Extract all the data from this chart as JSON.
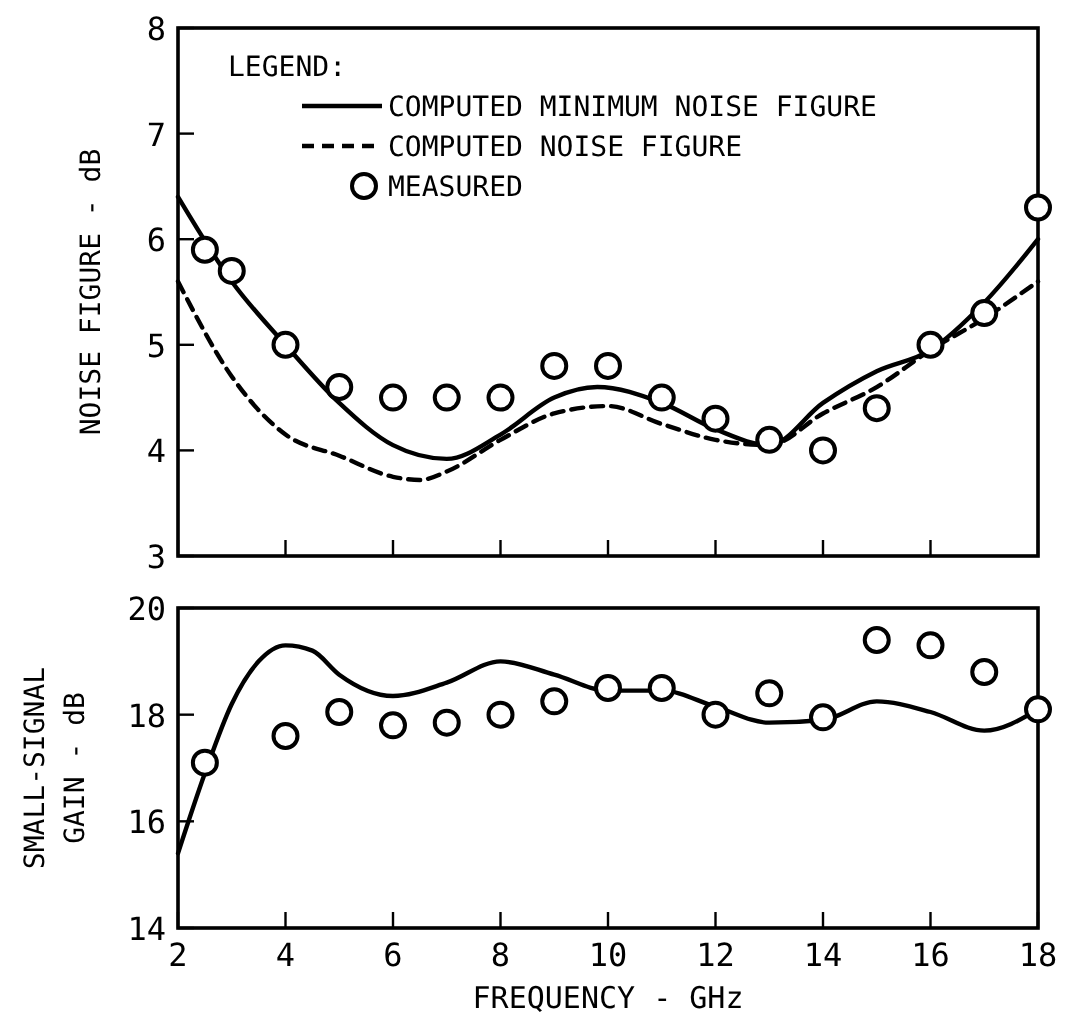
{
  "chart_data": [
    {
      "type": "line",
      "ylabel": "NOISE FIGURE - dB",
      "xlim": [
        2,
        18
      ],
      "xticks": [
        2,
        4,
        6,
        8,
        10,
        12,
        14,
        16,
        18
      ],
      "ylim": [
        3,
        8
      ],
      "yticks": [
        3,
        4,
        5,
        6,
        7,
        8
      ],
      "tick_labels": "y",
      "grid": false,
      "legend": "top left",
      "legend_title": "LEGEND:",
      "series": [
        {
          "name": "COMPUTED MINIMUM NOISE FIGURE",
          "type": "line",
          "line_style": "solid",
          "color": "#000000",
          "x": [
            2,
            3,
            4,
            5,
            6,
            7,
            8,
            9,
            9.8,
            11,
            12,
            13,
            14,
            15,
            16,
            17,
            18
          ],
          "values": [
            6.4,
            5.6,
            5.0,
            4.45,
            4.05,
            3.92,
            4.15,
            4.5,
            4.6,
            4.45,
            4.2,
            4.05,
            4.45,
            4.75,
            4.95,
            5.4,
            6.0
          ]
        },
        {
          "name": "COMPUTED NOISE FIGURE",
          "type": "line",
          "line_style": "dashed",
          "color": "#000000",
          "x": [
            2,
            3,
            4,
            5,
            6,
            6.5,
            7,
            8,
            9,
            10,
            11,
            12,
            13,
            14,
            15,
            16,
            17,
            18
          ],
          "values": [
            5.6,
            4.7,
            4.15,
            3.95,
            3.75,
            3.72,
            3.8,
            4.1,
            4.35,
            4.42,
            4.25,
            4.1,
            4.05,
            4.35,
            4.6,
            4.95,
            5.25,
            5.6
          ]
        },
        {
          "name": "MEASURED",
          "type": "scatter",
          "marker": "circle",
          "color": "#000000",
          "x": [
            2.5,
            3,
            4,
            5,
            6,
            7,
            8,
            9,
            10,
            11,
            12,
            13,
            14,
            15,
            16,
            17,
            18
          ],
          "values": [
            5.9,
            5.7,
            5.0,
            4.6,
            4.5,
            4.5,
            4.5,
            4.8,
            4.8,
            4.5,
            4.3,
            4.1,
            4.0,
            4.4,
            5.0,
            5.3,
            6.3
          ]
        }
      ]
    },
    {
      "type": "line",
      "ylabel": "SMALL-SIGNAL\nGAIN - dB",
      "xlabel": "FREQUENCY - GHz",
      "xlim": [
        2,
        18
      ],
      "xticks": [
        2,
        4,
        6,
        8,
        10,
        12,
        14,
        16,
        18
      ],
      "ylim": [
        14,
        20
      ],
      "yticks": [
        14,
        16,
        18,
        20
      ],
      "grid": false,
      "series": [
        {
          "type": "line",
          "line_style": "solid",
          "color": "#000000",
          "x": [
            2,
            2.5,
            3,
            3.5,
            4,
            4.5,
            5,
            6,
            7,
            8,
            9,
            10,
            11,
            12,
            13,
            14,
            15,
            16,
            17,
            18
          ],
          "values": [
            15.4,
            16.9,
            18.2,
            19.0,
            19.3,
            19.2,
            18.75,
            18.35,
            18.6,
            19.0,
            18.75,
            18.45,
            18.45,
            18.15,
            17.85,
            17.9,
            18.25,
            18.05,
            17.7,
            18.1
          ]
        },
        {
          "type": "scatter",
          "marker": "circle",
          "color": "#000000",
          "x": [
            2.5,
            4,
            5,
            6,
            7,
            8,
            9,
            10,
            11,
            12,
            13,
            14,
            15,
            16,
            17,
            18
          ],
          "values": [
            17.1,
            17.6,
            18.05,
            17.8,
            17.85,
            18.0,
            18.25,
            18.5,
            18.5,
            18.0,
            18.4,
            17.95,
            19.4,
            19.3,
            18.8,
            18.1
          ]
        }
      ]
    }
  ]
}
